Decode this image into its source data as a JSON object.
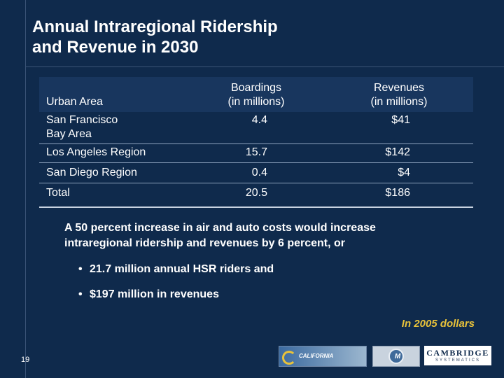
{
  "title": {
    "line1": "Annual Intraregional Ridership",
    "line2": "and Revenue in 2030"
  },
  "table": {
    "headers": {
      "area": "Urban Area",
      "boardings_line1": "Boardings",
      "boardings_line2": "(in millions)",
      "revenues_line1": "Revenues",
      "revenues_line2": "(in millions)"
    },
    "rows": [
      {
        "area_line1": "San Francisco",
        "area_line2": "Bay Area",
        "boardings": "4.4",
        "revenues": "$41"
      },
      {
        "area_line1": "Los Angeles Region",
        "boardings": "15.7",
        "revenues": "$142"
      },
      {
        "area_line1": "San Diego Region",
        "boardings": "0.4",
        "revenues": "$4"
      },
      {
        "area_line1": "Total",
        "boardings": "20.5",
        "revenues": "$186"
      }
    ]
  },
  "note": {
    "line1": "A 50 percent increase in air and auto costs would increase",
    "line2": "intraregional ridership and revenues by 6 percent, or"
  },
  "bullets": [
    "21.7 million annual HSR riders and",
    "$197 million in revenues"
  ],
  "bullet_glyph": "•",
  "footnote": "In 2005 dollars",
  "page_number": "19",
  "logos": {
    "hsr_text": "CALIFORNIA",
    "mtc_text": "M",
    "cs_line1": "CAMBRIDGE",
    "cs_line2": "SYSTEMATICS"
  },
  "colors": {
    "background": "#0f2a4c",
    "header_band": "#18365e",
    "footnote": "#e8c23a"
  }
}
